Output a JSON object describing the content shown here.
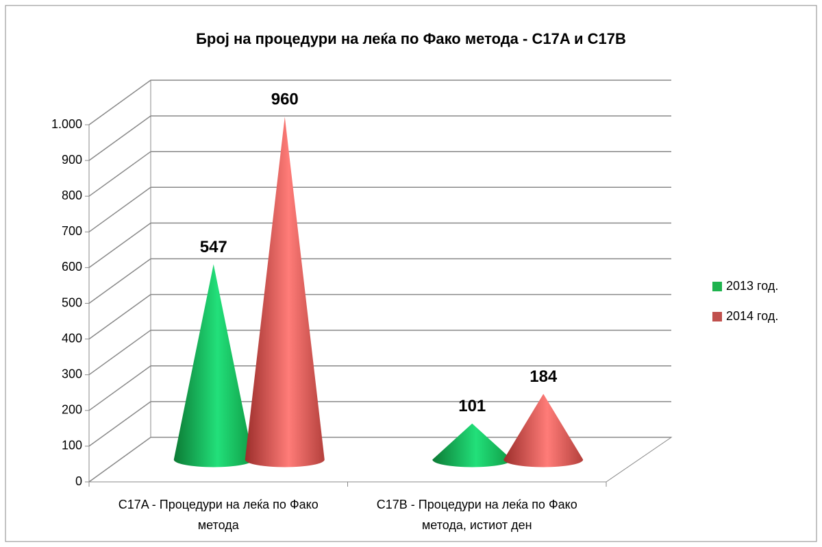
{
  "chart_data": {
    "type": "cone3d",
    "title": "Број на процедури на леќа по Фако метода - C17A и C17B",
    "categories": [
      "C17A - Процедури на леќа по Фако метода",
      "C17B - Процедури на леќа по Фако метода, истиот ден"
    ],
    "series": [
      {
        "name": "2013 год.",
        "color": "#1fb34e",
        "values": [
          547,
          101
        ]
      },
      {
        "name": "2014 год.",
        "color": "#c0504d",
        "values": [
          960,
          184
        ]
      }
    ],
    "ylim": [
      0,
      1000
    ],
    "yticks": [
      0,
      100,
      200,
      300,
      400,
      500,
      600,
      700,
      800,
      900,
      {
        "value": 1000,
        "label": "1.000"
      }
    ],
    "grid": true,
    "legend": "right"
  }
}
